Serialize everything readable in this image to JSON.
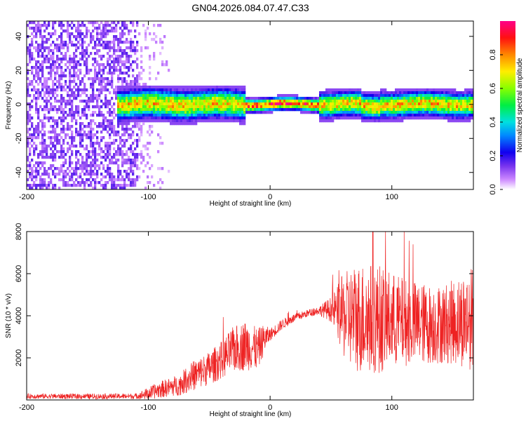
{
  "title": "GN04.2026.084.07.47.C33",
  "colors": {
    "snr_line": "#ee2222",
    "axis": "#000000"
  },
  "chart_data": [
    {
      "type": "heatmap",
      "title": "GN04.2026.084.07.47.C33",
      "xlabel": "Height of straight line (km)",
      "ylabel": "Frequency (Hz)",
      "xlim": [
        -200,
        167
      ],
      "ylim": [
        -50,
        49
      ],
      "xticks": [
        -200,
        -100,
        0,
        100
      ],
      "xtick_labels": [
        "-200",
        "-100",
        "0",
        "100"
      ],
      "yticks": [
        -40,
        -20,
        0,
        20,
        40
      ],
      "ytick_labels": [
        "-40",
        "-20",
        "0",
        "20",
        "40"
      ],
      "colorbar": {
        "label": "Normalized spectral amplitude",
        "range": [
          0,
          1
        ],
        "ticks": [
          0.0,
          0.2,
          0.4,
          0.6,
          0.8
        ],
        "tick_labels": [
          "0.0",
          "0.2",
          "0.4",
          "0.6",
          "0.8"
        ]
      },
      "noise_region_x": [
        -200,
        -108
      ],
      "noise_fade_end_x": -80,
      "signal": {
        "x_start": -125,
        "x_end": 167,
        "center_freq": 0
      }
    },
    {
      "type": "line",
      "xlabel": "Height of straight line (km)",
      "ylabel": "SNR (10 * v/v)",
      "xlim": [
        -200,
        167
      ],
      "ylim": [
        0,
        8000
      ],
      "xticks": [
        -200,
        -100,
        0,
        100
      ],
      "xtick_labels": [
        "-200",
        "-100",
        "0",
        "100"
      ],
      "yticks": [
        2000,
        4000,
        6000,
        8000
      ],
      "ytick_labels": [
        "2000",
        "4000",
        "6000",
        "8000"
      ],
      "series": [
        {
          "name": "SNR",
          "envelope_x": [
            -200,
            -150,
            -110,
            -100,
            -90,
            -75,
            -65,
            -50,
            -40,
            -30,
            -20,
            -10,
            -5,
            0,
            10,
            20,
            30,
            40,
            50,
            55,
            60,
            70,
            80,
            90,
            100,
            110,
            120,
            130,
            140,
            150,
            160,
            167
          ],
          "envelope_mean": [
            180,
            170,
            180,
            300,
            500,
            700,
            1100,
            1500,
            1900,
            2400,
            2600,
            2400,
            2900,
            3100,
            3600,
            3900,
            4100,
            4250,
            4300,
            4200,
            4000,
            3900,
            3900,
            3850,
            3800,
            3700,
            3650,
            3600,
            3600,
            3700,
            3800,
            3900
          ],
          "envelope_amp": [
            120,
            130,
            130,
            300,
            400,
            500,
            700,
            800,
            900,
            1100,
            1200,
            1000,
            700,
            300,
            250,
            200,
            180,
            200,
            600,
            1200,
            2000,
            2600,
            2700,
            2600,
            2300,
            2100,
            2000,
            1900,
            1900,
            2000,
            2300,
            2500
          ]
        }
      ]
    }
  ]
}
